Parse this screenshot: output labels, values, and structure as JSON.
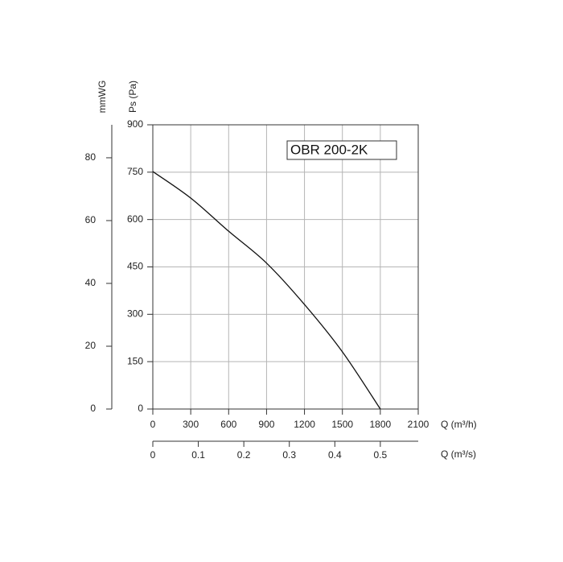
{
  "chart_data": {
    "type": "line",
    "title": "OBR 200-2K",
    "xlabel": "Q (m³/h)",
    "x2label": "Q (m³/s)",
    "ylabel": "Ps (Pa)",
    "y2label": "mmWG",
    "x": [
      0,
      300,
      600,
      900,
      1200,
      1500,
      1800
    ],
    "series": [
      {
        "color": "#111111",
        "values": [
          752,
          668,
          563,
          462,
          331,
          181,
          0
        ]
      }
    ],
    "xlim": [
      0,
      2100
    ],
    "xticks": [
      0,
      300,
      600,
      900,
      1200,
      1500,
      1800,
      2100
    ],
    "x2lim": [
      0,
      0.5833
    ],
    "x2ticks": [
      0,
      0.1,
      0.2,
      0.3,
      0.4,
      0.5
    ],
    "ylim": [
      0,
      900
    ],
    "yticks": [
      0,
      150,
      300,
      450,
      600,
      750,
      900
    ],
    "y2lim": [
      0,
      90.5
    ],
    "y2ticks": [
      0,
      20,
      40,
      60,
      80
    ],
    "grid": true
  }
}
